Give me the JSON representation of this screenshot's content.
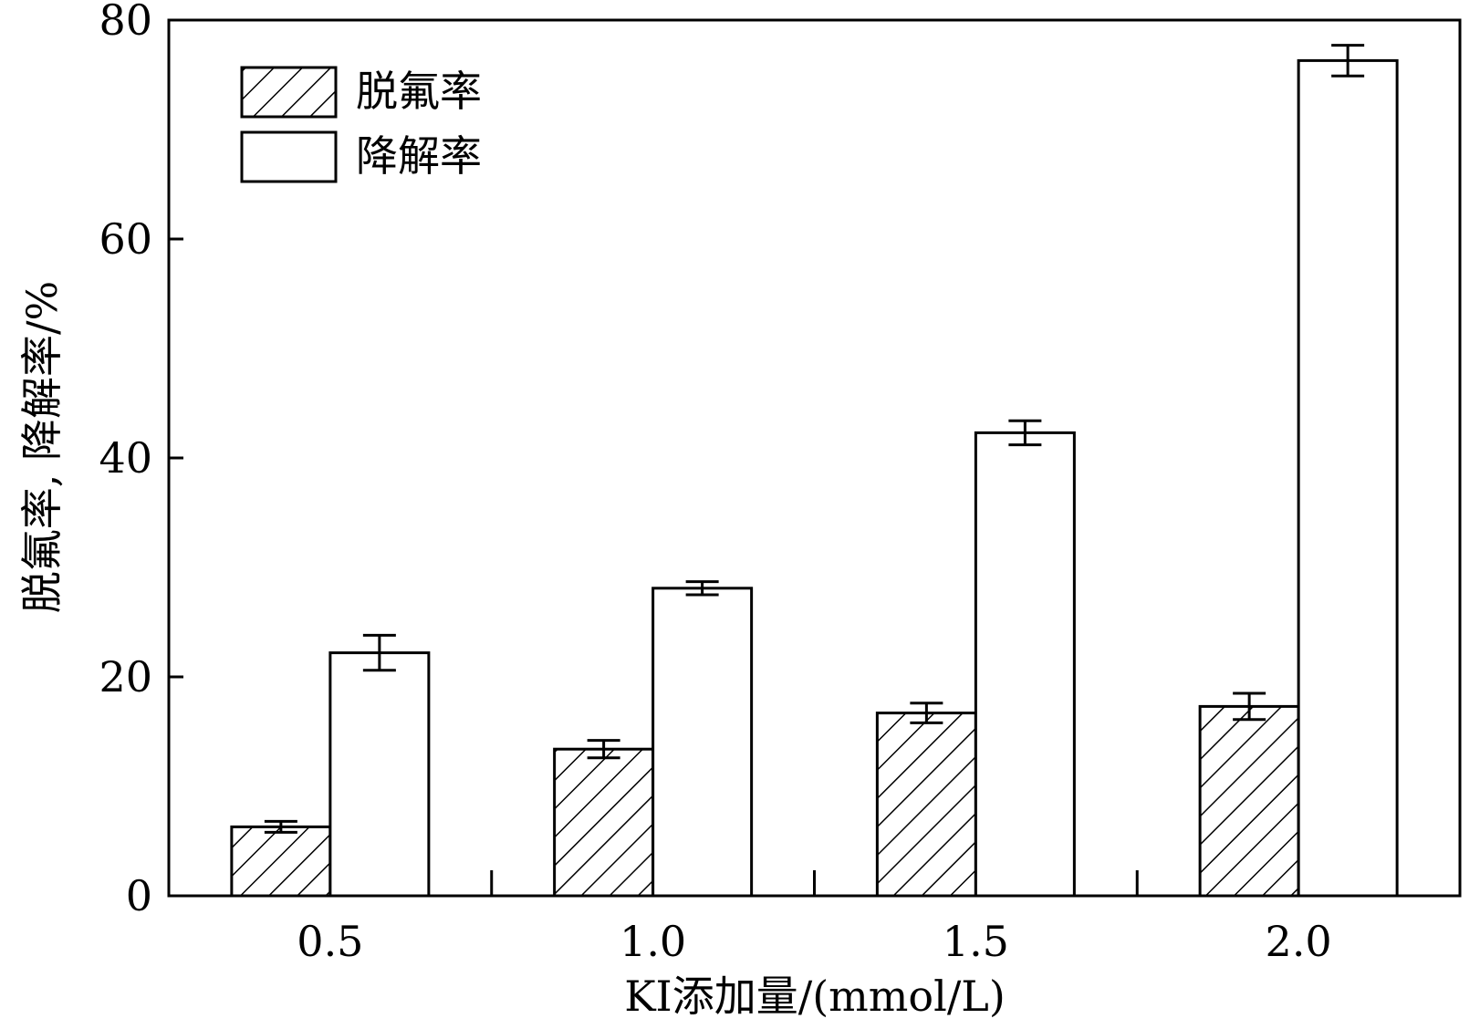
{
  "chart_data": {
    "type": "bar",
    "xlabel": "KI添加量/(mmol/L)",
    "ylabel": "脱氟率, 降解率/%",
    "ylim": [
      0,
      80
    ],
    "yticks": [
      0,
      20,
      40,
      60,
      80
    ],
    "categories": [
      "0.5",
      "1.0",
      "1.5",
      "2.0"
    ],
    "series": [
      {
        "name": "脱氟率",
        "pattern": "hatched",
        "values": [
          6.3,
          13.4,
          16.7,
          17.3
        ],
        "errors": [
          0.5,
          0.8,
          0.9,
          1.2
        ]
      },
      {
        "name": "降解率",
        "pattern": "white",
        "values": [
          22.2,
          28.1,
          42.3,
          76.3
        ],
        "errors": [
          1.6,
          0.6,
          1.1,
          1.4
        ]
      }
    ],
    "legend_position": "top-left",
    "grid": false
  }
}
